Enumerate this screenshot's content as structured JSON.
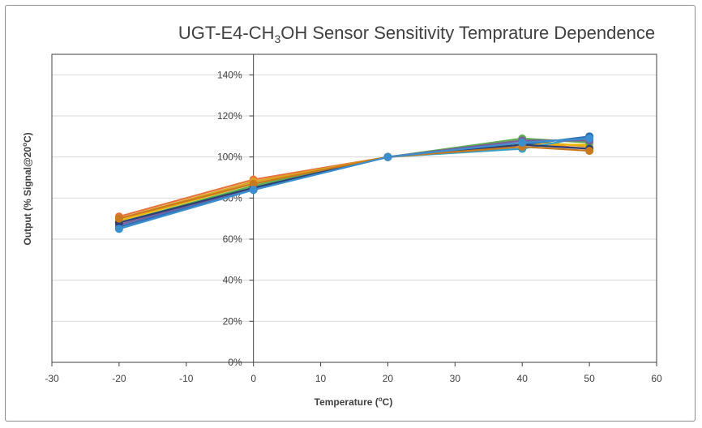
{
  "colors": {
    "series_palette": [
      "#e8733a",
      "#d9a521",
      "#f0b400",
      "#5cae4f",
      "#39a0c8",
      "#2f6eb5",
      "#7a5c9e",
      "#2b3f75",
      "#c9791e",
      "#3c8fce"
    ],
    "grid": "#d9d9d9",
    "axis": "#404040",
    "frame_border": "#8c8c8c"
  },
  "chart_data": {
    "type": "line",
    "title": "UGT-E4-CH₃OH Sensor Sensitivity Temprature Dependence",
    "title_parts": {
      "a": "UGT-E4-CH",
      "sub": "3",
      "b": "OH Sensor Sensitivity Temprature Dependence"
    },
    "xlabel": "Temperature (°C)",
    "xlabel_parts": {
      "a": "Temperature (",
      "sup": "o",
      "b": "C)"
    },
    "ylabel": "Output  (% Signal@20°C)",
    "ylabel_parts": {
      "a": "Output  (% Signal@20",
      "sup": "o",
      "b": "C)"
    },
    "xlim": [
      -30,
      60
    ],
    "ylim": [
      0,
      150
    ],
    "x_ticks": [
      -30,
      -20,
      -10,
      0,
      10,
      20,
      30,
      40,
      50,
      60
    ],
    "y_ticks": [
      0,
      20,
      40,
      60,
      80,
      100,
      120,
      140
    ],
    "y_tick_labels": [
      "0%",
      "20%",
      "40%",
      "60%",
      "80%",
      "100%",
      "120%",
      "140%"
    ],
    "grid": {
      "horizontal": true,
      "vertical": false
    },
    "legend": "none",
    "x": [
      -20,
      0,
      20,
      40,
      50
    ],
    "series": [
      {
        "values": [
          71,
          89,
          100,
          107,
          104
        ]
      },
      {
        "values": [
          70,
          88,
          100,
          108,
          105
        ]
      },
      {
        "values": [
          69,
          87,
          100,
          106,
          106
        ]
      },
      {
        "values": [
          68,
          86,
          100,
          109,
          107
        ]
      },
      {
        "values": [
          66,
          85,
          100,
          104,
          110
        ]
      },
      {
        "values": [
          66,
          84,
          100,
          106,
          110
        ]
      },
      {
        "values": [
          67,
          85,
          100,
          108,
          108
        ]
      },
      {
        "values": [
          68,
          85,
          100,
          106,
          104
        ]
      },
      {
        "values": [
          70,
          87,
          100,
          105,
          103
        ]
      },
      {
        "values": [
          65,
          84,
          100,
          107,
          109
        ]
      }
    ]
  }
}
